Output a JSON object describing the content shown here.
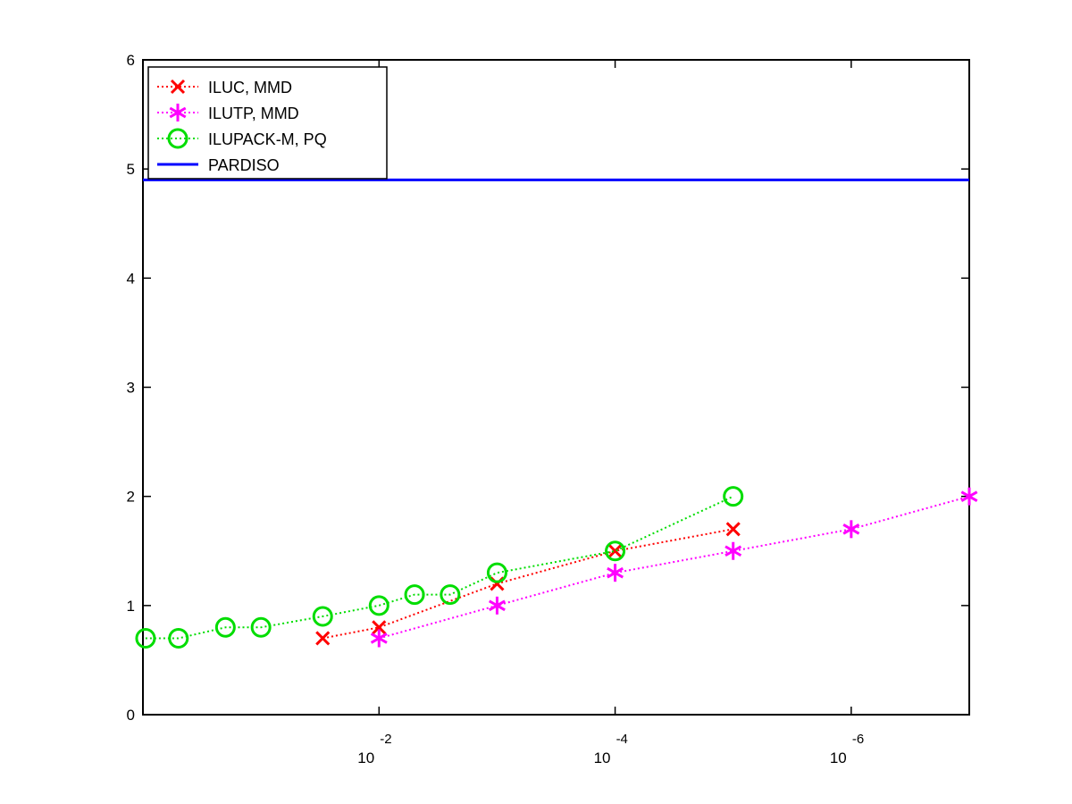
{
  "chart_data": {
    "type": "line",
    "title": "",
    "xlabel": "",
    "ylabel": "",
    "x_scale": "log-reversed",
    "x_ticks": [
      {
        "base": "10",
        "exp": "-2",
        "value": 0.01
      },
      {
        "base": "10",
        "exp": "-4",
        "value": 0.0001
      },
      {
        "base": "10",
        "exp": "-6",
        "value": 1e-06
      }
    ],
    "xlim": [
      1.0,
      1e-07
    ],
    "ylim": [
      0,
      6
    ],
    "y_ticks": [
      "0",
      "1",
      "2",
      "3",
      "4",
      "5",
      "6"
    ],
    "grid": false,
    "legend_position": "top-left",
    "series": [
      {
        "name": "ILUC, MMD",
        "color": "#ff0000",
        "marker": "x",
        "line_style": "dotted",
        "x": [
          0.03,
          0.01,
          0.001,
          0.0001,
          1e-05
        ],
        "y": [
          0.7,
          0.8,
          1.2,
          1.5,
          1.7
        ]
      },
      {
        "name": "ILUTP, MMD",
        "color": "#ff00ff",
        "marker": "asterisk",
        "line_style": "dotted",
        "x": [
          0.01,
          0.001,
          0.0001,
          1e-05,
          1e-06,
          1e-07
        ],
        "y": [
          0.7,
          1.0,
          1.3,
          1.5,
          1.7,
          2.0
        ]
      },
      {
        "name": "ILUPACK-M, PQ",
        "color": "#00dd00",
        "marker": "circle",
        "line_style": "dotted",
        "x": [
          0.95,
          0.5,
          0.2,
          0.1,
          0.03,
          0.01,
          0.005,
          0.0025,
          0.001,
          0.0001,
          1e-05
        ],
        "y": [
          0.7,
          0.7,
          0.8,
          0.8,
          0.9,
          1.0,
          1.1,
          1.1,
          1.3,
          1.5,
          2.0
        ]
      },
      {
        "name": "PARDISO",
        "color": "#0000ff",
        "marker": "none",
        "line_style": "solid",
        "x": [
          1.0,
          1e-07
        ],
        "y": [
          4.9,
          4.9
        ]
      }
    ]
  }
}
